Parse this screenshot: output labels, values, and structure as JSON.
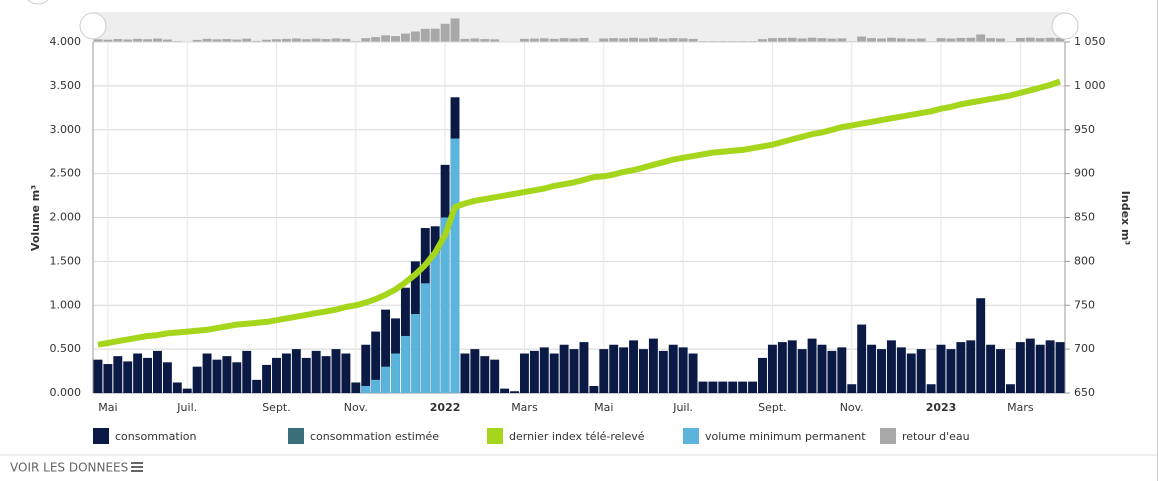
{
  "chart_data": {
    "type": "bar",
    "y_label": "Volume m³",
    "y2_label": "Index m³",
    "link": "VOIR LES DONNEES",
    "categories": [
      null,
      "Mai",
      null,
      null,
      null,
      null,
      null,
      null,
      null,
      "Juil.",
      null,
      null,
      null,
      null,
      null,
      null,
      null,
      null,
      "Sept.",
      null,
      null,
      null,
      null,
      null,
      null,
      null,
      "Nov.",
      null,
      null,
      null,
      null,
      null,
      null,
      null,
      null,
      "2022",
      null,
      null,
      null,
      null,
      null,
      null,
      null,
      "Mars",
      null,
      null,
      null,
      null,
      null,
      null,
      null,
      "Mai",
      null,
      null,
      null,
      null,
      null,
      null,
      null,
      "Juil.",
      null,
      null,
      null,
      null,
      null,
      null,
      null,
      null,
      "Sept.",
      null,
      null,
      null,
      null,
      null,
      null,
      null,
      "Nov.",
      null,
      null,
      null,
      null,
      null,
      null,
      null,
      null,
      "2023",
      null,
      null,
      null,
      null,
      null,
      null,
      null,
      "Mars",
      null,
      null,
      null,
      null
    ],
    "series": [
      {
        "name": "consommation",
        "color": "#0b1a45",
        "kind": "bar",
        "values": [
          0.38,
          0.33,
          0.42,
          0.36,
          0.45,
          0.4,
          0.48,
          0.35,
          0.12,
          0.05,
          0.3,
          0.45,
          0.38,
          0.42,
          0.35,
          0.48,
          0.15,
          0.32,
          0.4,
          0.45,
          0.5,
          0.4,
          0.48,
          0.42,
          0.5,
          0.45,
          0.12,
          0.55,
          0.7,
          0.95,
          0.85,
          1.2,
          1.5,
          1.88,
          1.9,
          2.6,
          3.37,
          0.45,
          0.5,
          0.42,
          0.38,
          0.05,
          0.02,
          0.45,
          0.48,
          0.52,
          0.45,
          0.55,
          0.5,
          0.58,
          0.08,
          0.5,
          0.55,
          0.52,
          0.6,
          0.5,
          0.62,
          0.48,
          0.55,
          0.52,
          0.45,
          0.13,
          0.13,
          0.13,
          0.13,
          0.13,
          0.13,
          0.4,
          0.55,
          0.58,
          0.6,
          0.5,
          0.62,
          0.55,
          0.48,
          0.52,
          0.1,
          0.78,
          0.55,
          0.5,
          0.6,
          0.52,
          0.45,
          0.5,
          0.1,
          0.55,
          0.5,
          0.58,
          0.6,
          1.08,
          0.55,
          0.5,
          0.1,
          0.58,
          0.62,
          0.55,
          0.6,
          0.58
        ]
      },
      {
        "name": "consommation estimée",
        "color": "#3a6f7a",
        "kind": "bar",
        "values": [
          0,
          0,
          0,
          0,
          0,
          0,
          0,
          0,
          0,
          0,
          0,
          0,
          0,
          0,
          0,
          0,
          0,
          0,
          0,
          0,
          0,
          0,
          0,
          0,
          0,
          0,
          0,
          0,
          0,
          0,
          0,
          0,
          0,
          0,
          0,
          0,
          0,
          0,
          0,
          0,
          0,
          0,
          0,
          0,
          0,
          0,
          0,
          0,
          0,
          0,
          0,
          0,
          0,
          0,
          0,
          0,
          0,
          0,
          0,
          0,
          0,
          0,
          0,
          0,
          0,
          0,
          0,
          0,
          0,
          0,
          0,
          0,
          0,
          0,
          0,
          0,
          0,
          0,
          0,
          0,
          0,
          0,
          0,
          0,
          0,
          0,
          0,
          0,
          0,
          0,
          0,
          0,
          0,
          0,
          0,
          0,
          0,
          0
        ]
      },
      {
        "name": "dernier index télé-relevé",
        "color": "#a5d61c",
        "kind": "line",
        "axis": "y2",
        "values": [
          705,
          707,
          709,
          711,
          713,
          715,
          716,
          718,
          719,
          720,
          721,
          722,
          724,
          726,
          728,
          729,
          730,
          731,
          733,
          735,
          737,
          739,
          741,
          743,
          745,
          748,
          750,
          753,
          757,
          762,
          768,
          776,
          785,
          796,
          810,
          830,
          862,
          866,
          869,
          871,
          873,
          875,
          877,
          879,
          881,
          883,
          886,
          888,
          890,
          893,
          896,
          897,
          899,
          902,
          904,
          907,
          910,
          913,
          916,
          918,
          920,
          922,
          924,
          925,
          926,
          927,
          929,
          931,
          933,
          936,
          939,
          942,
          945,
          947,
          950,
          953,
          955,
          957,
          959,
          961,
          963,
          965,
          967,
          969,
          971,
          974,
          976,
          979,
          981,
          983,
          985,
          987,
          989,
          992,
          995,
          998,
          1001,
          1005
        ]
      },
      {
        "name": "volume minimum permanent",
        "color": "#5ab4dc",
        "kind": "bar",
        "values": [
          0,
          0,
          0,
          0,
          0,
          0,
          0,
          0,
          0,
          0,
          0,
          0,
          0,
          0,
          0,
          0,
          0,
          0,
          0,
          0,
          0,
          0,
          0,
          0,
          0,
          0,
          0,
          0.08,
          0.15,
          0.3,
          0.45,
          0.65,
          0.9,
          1.25,
          1.6,
          2.0,
          2.9,
          0,
          0,
          0,
          0,
          0,
          0,
          0,
          0,
          0,
          0,
          0,
          0,
          0,
          0,
          0,
          0,
          0,
          0,
          0,
          0,
          0,
          0,
          0,
          0,
          0,
          0,
          0,
          0,
          0,
          0,
          0,
          0,
          0,
          0,
          0,
          0,
          0,
          0,
          0,
          0,
          0,
          0,
          0,
          0,
          0,
          0,
          0,
          0,
          0,
          0,
          0,
          0,
          0,
          0,
          0,
          0,
          0,
          0,
          0,
          0,
          0
        ]
      },
      {
        "name": "retour d'eau",
        "color": "#a8a8a8",
        "kind": "bar",
        "values": [
          0,
          0,
          0,
          0,
          0,
          0,
          0,
          0,
          0,
          0,
          0,
          0,
          0,
          0,
          0,
          0,
          0,
          0,
          0,
          0,
          0,
          0,
          0,
          0,
          0,
          0,
          0,
          0,
          0,
          0,
          0,
          0,
          0,
          0,
          0,
          0,
          0,
          0,
          0,
          0,
          0,
          0,
          0,
          0,
          0,
          0,
          0,
          0,
          0,
          0,
          0,
          0,
          0,
          0,
          0,
          0,
          0,
          0,
          0,
          0,
          0,
          0,
          0,
          0,
          0,
          0,
          0,
          0,
          0,
          0,
          0,
          0,
          0,
          0,
          0,
          0,
          0,
          0,
          0,
          0,
          0,
          0,
          0,
          0,
          0,
          0,
          0,
          0,
          0,
          0,
          0,
          0,
          0,
          0,
          0,
          0,
          0,
          0
        ]
      }
    ],
    "ylim": [
      0,
      4
    ],
    "yticks": [
      {
        "value": 0,
        "label": "0.000"
      },
      {
        "value": 0.5,
        "label": "0.500"
      },
      {
        "value": 1,
        "label": "1.000"
      },
      {
        "value": 1.5,
        "label": "1.500"
      },
      {
        "value": 2,
        "label": "2.000"
      },
      {
        "value": 2.5,
        "label": "2.500"
      },
      {
        "value": 3,
        "label": "3.000"
      },
      {
        "value": 3.5,
        "label": "3.500"
      },
      {
        "value": 4,
        "label": "4.000"
      }
    ],
    "y2lim": [
      650,
      1050
    ],
    "y2ticks": [
      650,
      700,
      750,
      800,
      850,
      900,
      950,
      {
        "value": 1000,
        "label": "1 000"
      },
      {
        "value": 1050,
        "label": "1 050"
      }
    ],
    "grid": true
  }
}
